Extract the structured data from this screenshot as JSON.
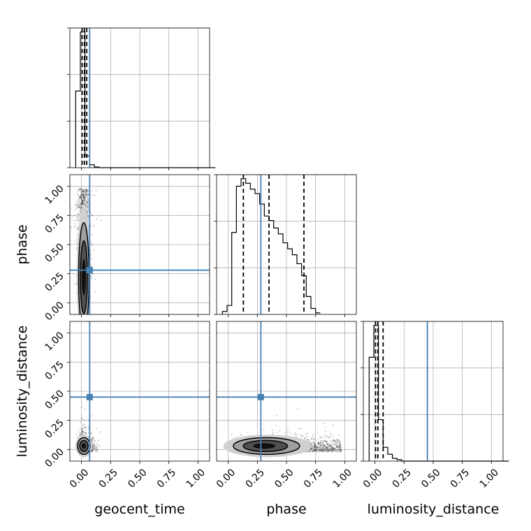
{
  "chart_data": {
    "type": "corner",
    "parameters": [
      "geocent_time",
      "phase",
      "luminosity_distance"
    ],
    "axis_range": [
      -0.1,
      1.1
    ],
    "ticks": [
      0.0,
      0.25,
      0.5,
      0.75,
      1.0
    ],
    "tick_labels": [
      "0.00",
      "0.25",
      "0.50",
      "0.75",
      "1.00"
    ],
    "grid": true,
    "truth_color": "#4682b4",
    "truths": {
      "geocent_time": 0.07,
      "phase": 0.28,
      "luminosity_distance": 0.45
    },
    "quantiles": {
      "geocent_time": [
        0.005,
        0.025,
        0.045
      ],
      "phase": [
        0.13,
        0.35,
        0.65
      ],
      "luminosity_distance": [
        0.005,
        0.025,
        0.07
      ]
    },
    "histograms": {
      "geocent_time": {
        "bin_width": 0.04,
        "bins_start": -0.05,
        "counts": [
          0.52,
          0.92,
          0.08,
          0.02,
          0.005,
          0,
          0,
          0,
          0,
          0,
          0,
          0,
          0,
          0,
          0,
          0,
          0,
          0,
          0,
          0,
          0,
          0,
          0,
          0,
          0,
          0,
          0,
          0,
          0,
          0
        ]
      },
      "phase": {
        "bin_width": 0.04,
        "bins_start": -0.05,
        "counts": [
          0.02,
          0.06,
          0.55,
          0.86,
          0.91,
          0.88,
          0.84,
          0.81,
          0.74,
          0.66,
          0.63,
          0.58,
          0.54,
          0.48,
          0.44,
          0.4,
          0.34,
          0.26,
          0.12,
          0.04,
          0.01
        ]
      },
      "luminosity_distance": {
        "bin_width": 0.04,
        "bins_start": -0.05,
        "counts": [
          0.75,
          0.98,
          0.3,
          0.1,
          0.05,
          0.02,
          0.01,
          0,
          0,
          0,
          0,
          0,
          0,
          0,
          0,
          0,
          0,
          0,
          0,
          0,
          0,
          0,
          0,
          0,
          0,
          0,
          0,
          0,
          0,
          0
        ]
      }
    },
    "density_2d": {
      "phase_vs_geocent_time": {
        "x_center": 0.02,
        "x_sigma": 0.025,
        "y_center": 0.22,
        "y_sigma": 0.2
      },
      "luminosity_distance_vs_geocent_time": {
        "x_center": 0.02,
        "x_sigma": 0.03,
        "y_center": 0.03,
        "y_sigma": 0.04
      },
      "luminosity_distance_vs_phase": {
        "x_center": 0.3,
        "x_sigma": 0.2,
        "y_center": 0.03,
        "y_sigma": 0.04
      }
    }
  }
}
